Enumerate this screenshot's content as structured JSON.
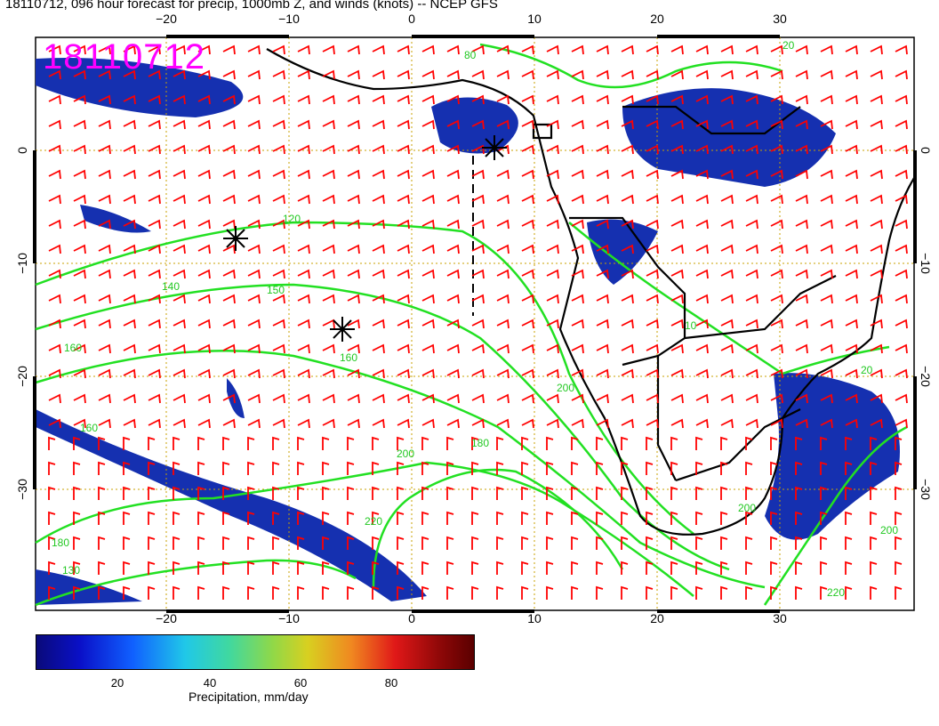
{
  "title": "18110712, 096 hour forecast for precip, 1000mb Z, and winds (knots) -- NCEP GFS",
  "stamp": "18110712",
  "axes": {
    "lon_ticks": [
      "−20",
      "−10",
      "0",
      "10",
      "20",
      "30"
    ],
    "lat_ticks": [
      "0",
      "−10",
      "−20",
      "−30"
    ]
  },
  "contour_labels": [
    "80",
    "120",
    "140",
    "150",
    "160",
    "160",
    "180",
    "200",
    "220",
    "200",
    "160",
    "180",
    "130",
    "200",
    "20",
    "10",
    "200",
    "220",
    "20"
  ],
  "colorbar": {
    "label": "Precipitation, mm/day",
    "ticks": [
      "20",
      "40",
      "60",
      "80"
    ],
    "colors": [
      "#0a0a7a",
      "#1060ff",
      "#20c8e8",
      "#d8d020",
      "#e01818",
      "#5a0000"
    ]
  },
  "colors": {
    "wind_barbs": "#ff0000",
    "contours": "#22e022",
    "land": "#000000",
    "grid": "#c8a000"
  }
}
